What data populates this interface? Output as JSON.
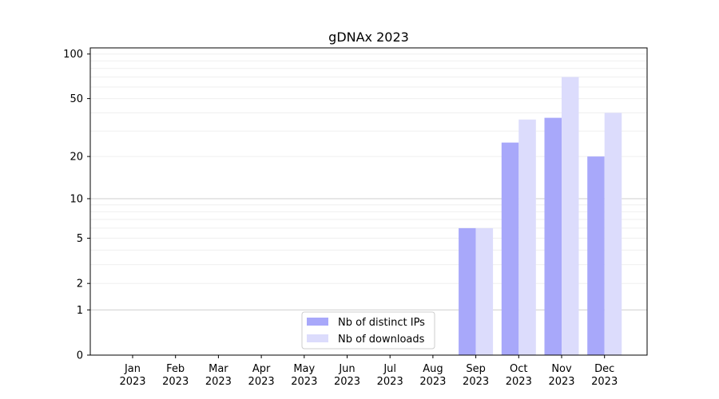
{
  "chart_data": {
    "type": "bar",
    "title": "gDNAx 2023",
    "xlabel": "",
    "ylabel": "",
    "yscale": "log(1+y)",
    "ylim": [
      0,
      110
    ],
    "y_ticks": [
      0,
      1,
      2,
      5,
      10,
      20,
      50,
      100
    ],
    "categories": [
      {
        "month": "Jan",
        "year": "2023"
      },
      {
        "month": "Feb",
        "year": "2023"
      },
      {
        "month": "Mar",
        "year": "2023"
      },
      {
        "month": "Apr",
        "year": "2023"
      },
      {
        "month": "May",
        "year": "2023"
      },
      {
        "month": "Jun",
        "year": "2023"
      },
      {
        "month": "Jul",
        "year": "2023"
      },
      {
        "month": "Aug",
        "year": "2023"
      },
      {
        "month": "Sep",
        "year": "2023"
      },
      {
        "month": "Oct",
        "year": "2023"
      },
      {
        "month": "Nov",
        "year": "2023"
      },
      {
        "month": "Dec",
        "year": "2023"
      }
    ],
    "series": [
      {
        "name": "Nb of distinct IPs",
        "color": "#a8a8fa",
        "values": [
          0,
          0,
          0,
          0,
          0,
          0,
          0,
          0,
          6,
          25,
          37,
          20
        ]
      },
      {
        "name": "Nb of downloads",
        "color": "#dcdcfc",
        "values": [
          0,
          0,
          0,
          0,
          0,
          0,
          0,
          0,
          6,
          36,
          70,
          40
        ]
      }
    ],
    "grid": true,
    "legend_position": "bottom-center"
  }
}
